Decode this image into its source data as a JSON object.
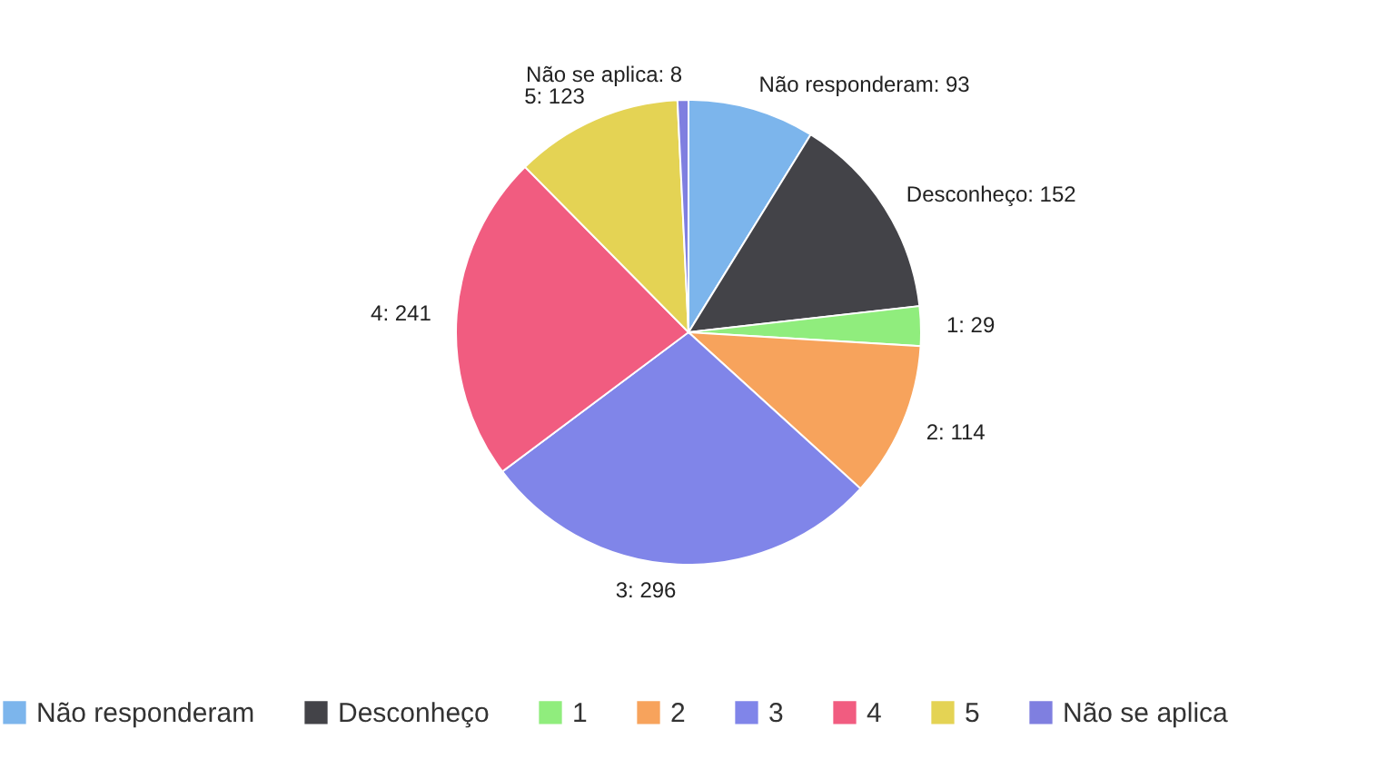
{
  "chart_data": {
    "type": "pie",
    "categories": [
      "Não responderam",
      "Desconheço",
      "1",
      "2",
      "3",
      "4",
      "5",
      "Não se aplica"
    ],
    "values": [
      93,
      152,
      29,
      114,
      296,
      241,
      123,
      8
    ],
    "colors": [
      "#7cb5ec",
      "#434348",
      "#90ed7d",
      "#f7a35c",
      "#8085e9",
      "#f15c80",
      "#e4d354",
      "#7f7fe0"
    ],
    "value_labels": [
      "Não responderam: 93",
      "Desconheço: 152",
      "1: 29",
      "2: 114",
      "3: 296",
      "4: 241",
      "5: 123",
      "Não se aplica: 8"
    ],
    "legend": "bottom"
  }
}
